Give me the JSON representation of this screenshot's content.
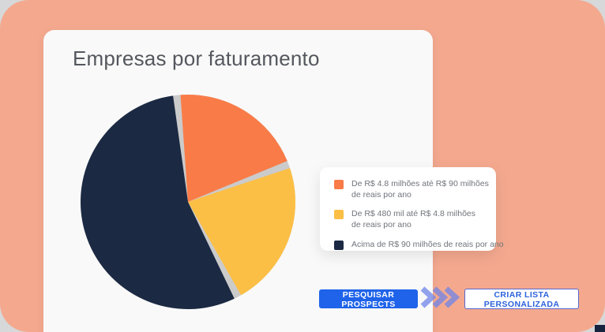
{
  "page": {
    "background_color": "#d7d8d9",
    "panel_color": "#f4a98f"
  },
  "card": {
    "title": "Empresas por faturamento"
  },
  "chart_data": {
    "type": "pie",
    "title": "Empresas por faturamento",
    "start_angle_deg": -6,
    "gap_deg": 4,
    "gap_color": "#cbcbcb",
    "legend_position": "right",
    "segments": [
      {
        "label": "De R$ 4.8 milhões até R$ 90 milhões de reais por ano",
        "percent_est": 21,
        "color": "#f97c48"
      },
      {
        "label": "De R$ 480 mil até R$ 4.8 milhões de reais por ano",
        "percent_est": 23,
        "color": "#fcbf45"
      },
      {
        "label": "Acima de R$ 90 milhões de reais por ano",
        "percent_est": 56,
        "color": "#1b2943"
      }
    ]
  },
  "legend": {
    "items": [
      {
        "line1": "De R$ 4.8 milhões até R$ 90 milhões",
        "line2": "de reais por ano",
        "color": "#f97c48"
      },
      {
        "line1": "De R$ 480 mil até R$ 4.8 milhões",
        "line2": "de reais por ano",
        "color": "#fcbf45"
      },
      {
        "line1": "Acima de R$ 90 milhões de reais por ano",
        "line2": "",
        "color": "#1b2943"
      }
    ]
  },
  "actions": {
    "primary_label": "PESQUISAR PROSPECTS",
    "primary_color": "#1e63e9",
    "secondary_label": "CRIAR LISTA PERSONALIZADA",
    "secondary_text_color": "#2d63dc",
    "secondary_border_color": "#5568ce",
    "chevron_color": "#6f84e8"
  }
}
